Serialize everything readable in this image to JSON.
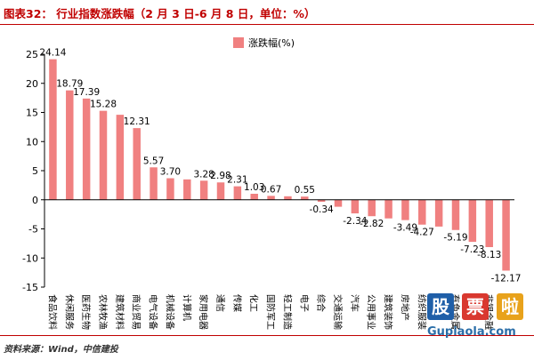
{
  "title": "图表32：   行业指数涨跌幅（2 月 3 日-6 月 8 日，单位：%）",
  "source": "资料来源：Wind，中信建投",
  "watermark": {
    "chars": [
      "股",
      "票",
      "啦"
    ],
    "domain": "Gupiaola.com",
    "colors": [
      "#1f5fa8",
      "#d9382f",
      "#e8a21b"
    ]
  },
  "chart_data": {
    "type": "bar",
    "categories": [
      "食品饮料",
      "休闲服务",
      "医药生物",
      "农林牧渔",
      "建筑材料",
      "商业贸易",
      "电气设备",
      "机械设备",
      "计算机",
      "家用电器",
      "通信",
      "传媒",
      "化工",
      "国防军工",
      "轻工制造",
      "电子",
      "综合",
      "交通运输",
      "汽车",
      "公用事业",
      "建筑装饰",
      "房地产",
      "纺织服装",
      "钢铁",
      "有色金属",
      "银行",
      "非银金融",
      "采掘"
    ],
    "series": [
      {
        "name": "涨跌幅(%)",
        "values": [
          24.14,
          18.79,
          17.39,
          15.28,
          14.6,
          12.31,
          5.57,
          3.7,
          3.5,
          3.28,
          2.98,
          2.31,
          1.03,
          0.67,
          0.6,
          0.55,
          -0.34,
          -1.2,
          -2.34,
          -2.82,
          -3.2,
          -3.49,
          -4.27,
          -4.6,
          -5.19,
          -7.23,
          -8.13,
          -12.17
        ]
      }
    ],
    "data_labels": [
      "24.14",
      "18.79",
      "17.39",
      "15.28",
      "",
      "12.31",
      "5.57",
      "3.70",
      "",
      "3.28",
      "2.98",
      "2.31",
      "1.03",
      "0.67",
      "",
      "0.55",
      "-0.34",
      "",
      "-2.34",
      "-2.82",
      "",
      "-3.49",
      "-4.27",
      "",
      "-5.19",
      "-7.23",
      "-8.13",
      "-12.17"
    ],
    "ylim": [
      -15,
      25
    ],
    "yticks": [
      "25",
      "20",
      "15",
      "10",
      "5",
      "0",
      "-5",
      "-10",
      "-15"
    ],
    "bar_color": "#f08080",
    "legend_position": "top-right",
    "grid": false
  }
}
